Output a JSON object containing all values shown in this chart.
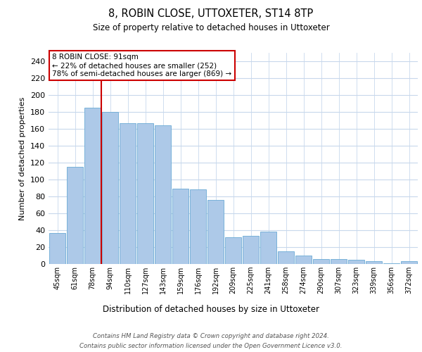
{
  "title": "8, ROBIN CLOSE, UTTOXETER, ST14 8TP",
  "subtitle": "Size of property relative to detached houses in Uttoxeter",
  "xlabel": "Distribution of detached houses by size in Uttoxeter",
  "ylabel": "Number of detached properties",
  "categories": [
    "45sqm",
    "61sqm",
    "78sqm",
    "94sqm",
    "110sqm",
    "127sqm",
    "143sqm",
    "159sqm",
    "176sqm",
    "192sqm",
    "209sqm",
    "225sqm",
    "241sqm",
    "258sqm",
    "274sqm",
    "290sqm",
    "307sqm",
    "323sqm",
    "339sqm",
    "356sqm",
    "372sqm"
  ],
  "values": [
    37,
    115,
    185,
    180,
    167,
    167,
    164,
    89,
    88,
    76,
    32,
    33,
    38,
    15,
    10,
    6,
    6,
    5,
    3,
    1,
    3
  ],
  "bar_color": "#adc9e8",
  "bar_edge_color": "#6aaad4",
  "vline_x_index": 2,
  "vline_color": "#cc0000",
  "annotation_text": "8 ROBIN CLOSE: 91sqm\n← 22% of detached houses are smaller (252)\n78% of semi-detached houses are larger (869) →",
  "annotation_box_color": "#ffffff",
  "annotation_box_edge": "#cc0000",
  "bg_color": "#ffffff",
  "grid_color": "#c8d8ec",
  "footer_line1": "Contains HM Land Registry data © Crown copyright and database right 2024.",
  "footer_line2": "Contains public sector information licensed under the Open Government Licence v3.0.",
  "ylim": [
    0,
    250
  ],
  "yticks": [
    0,
    20,
    40,
    60,
    80,
    100,
    120,
    140,
    160,
    180,
    200,
    220,
    240
  ]
}
